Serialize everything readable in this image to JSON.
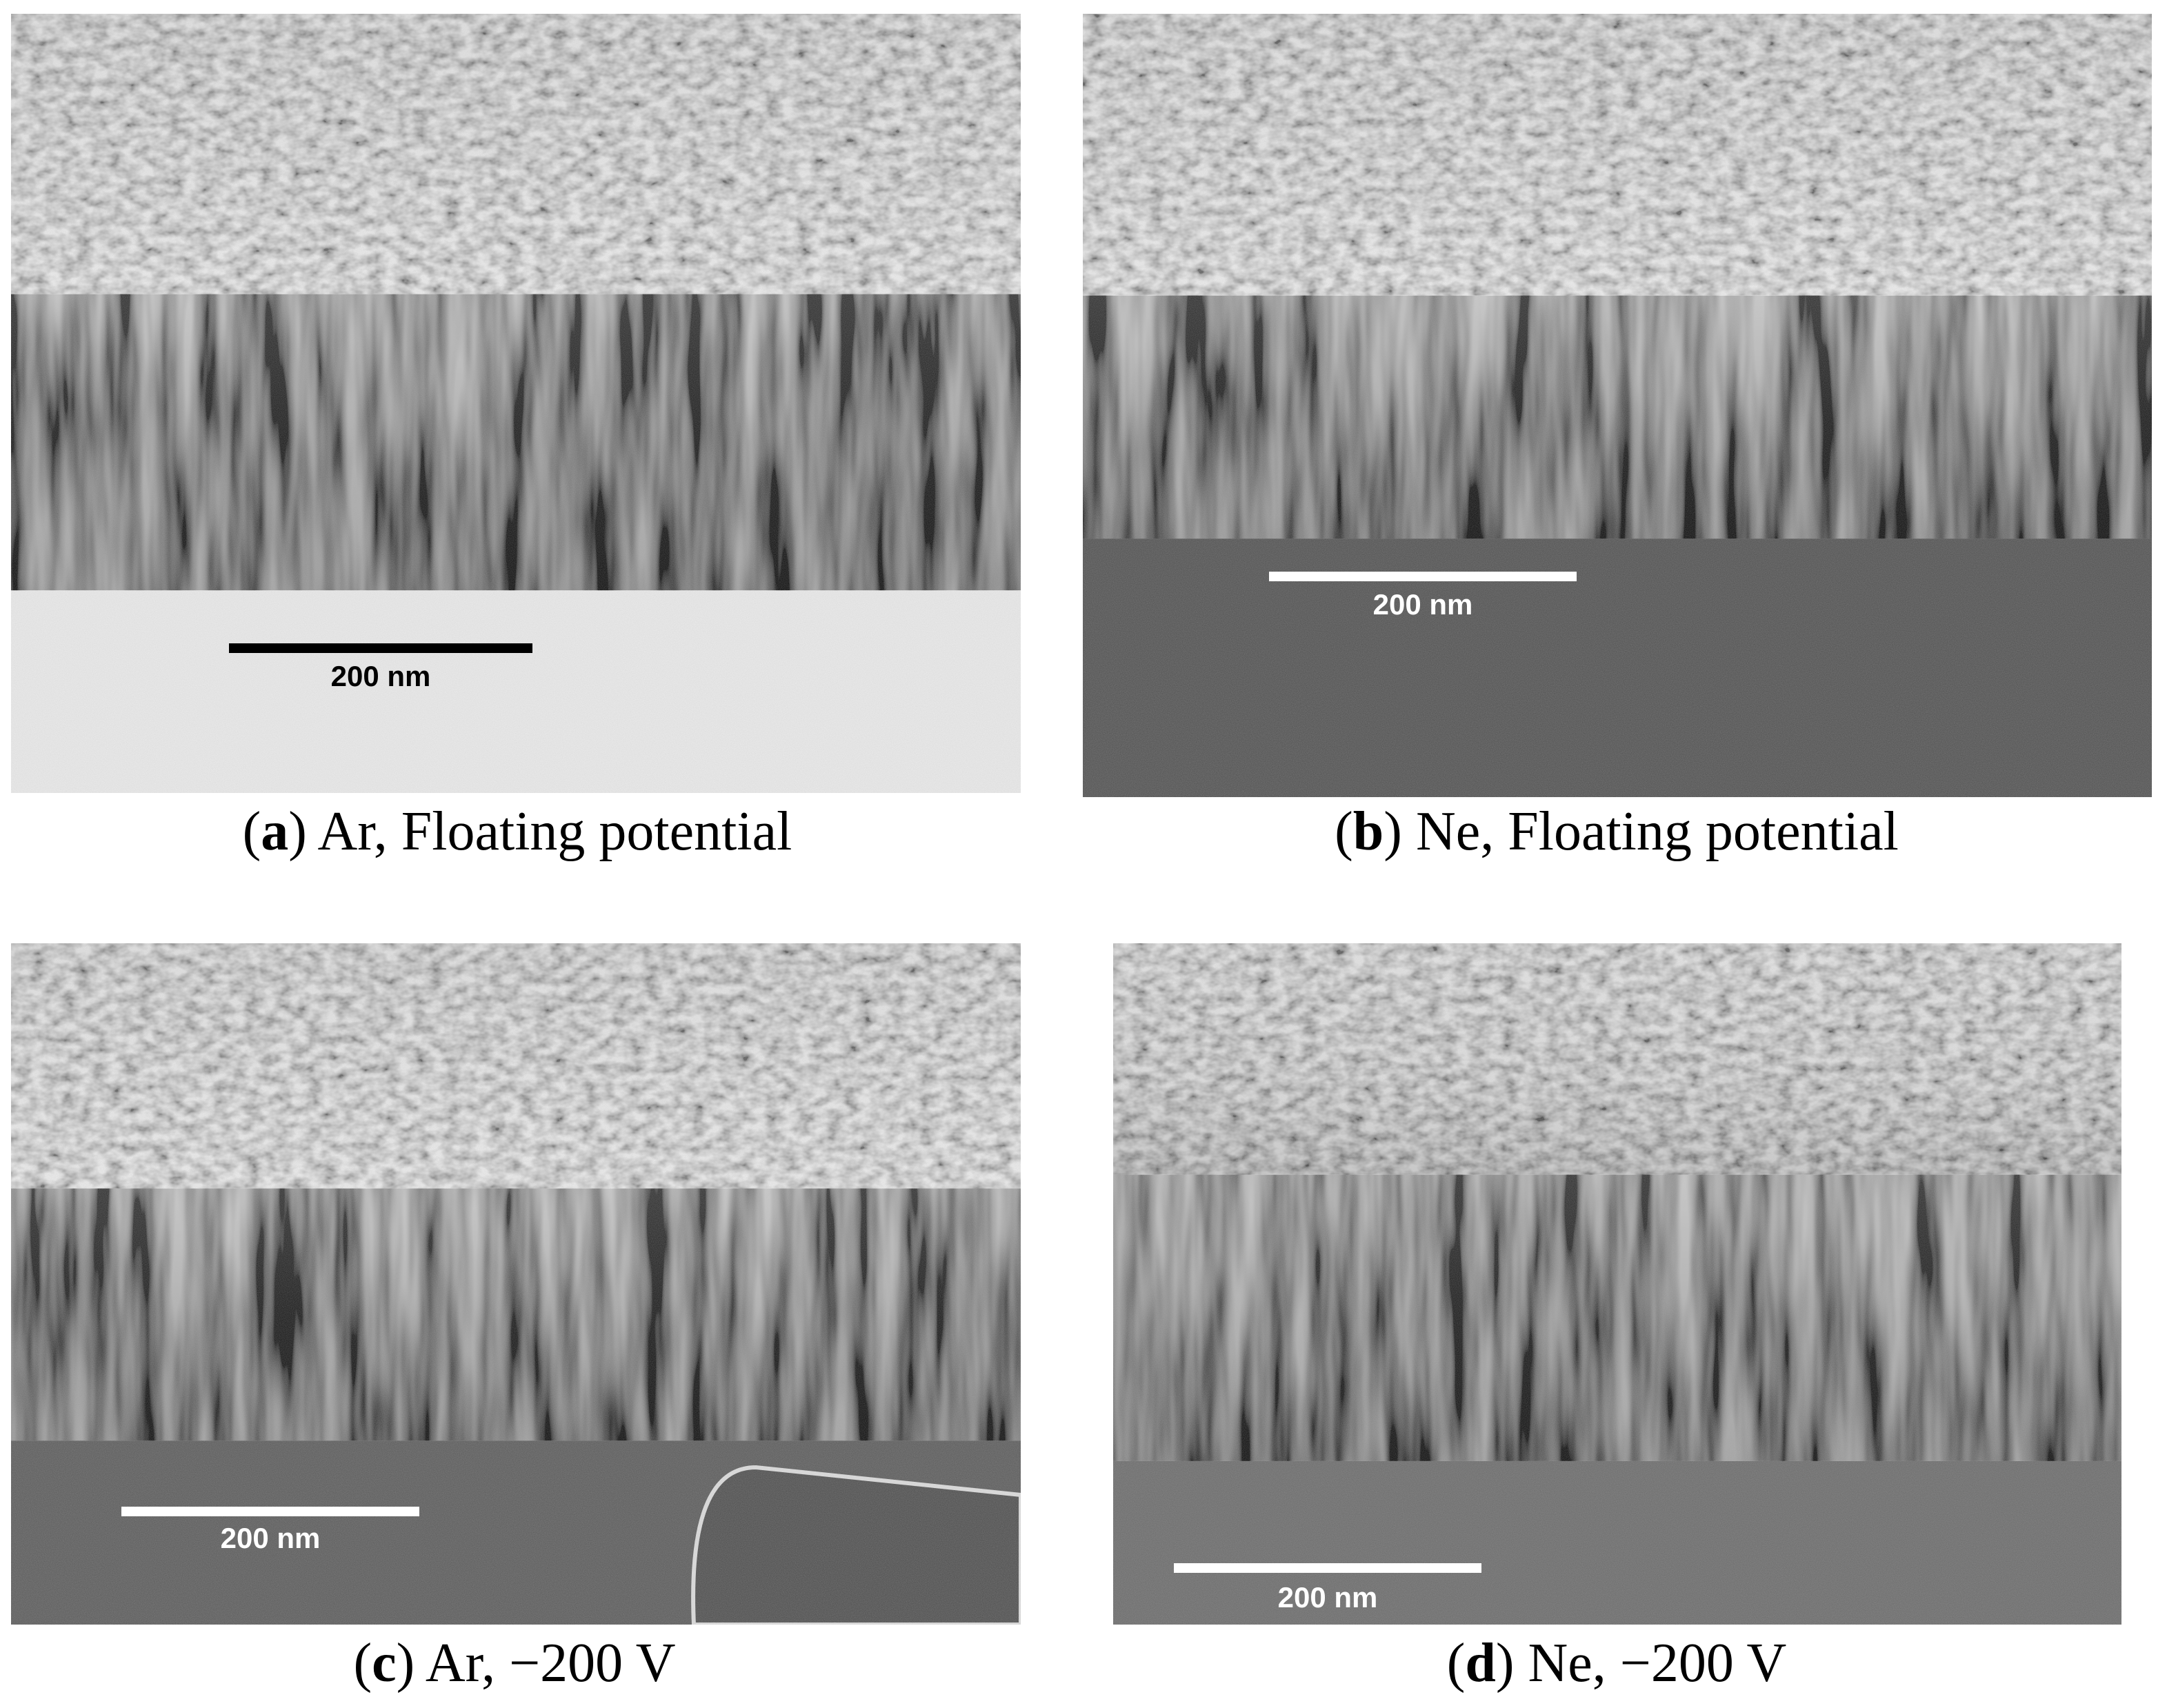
{
  "panels": [
    {
      "open": "(",
      "letter": "a",
      "caption": ") Ar, Floating potential",
      "scale_bar": "200 nm"
    },
    {
      "open": "(",
      "letter": "b",
      "caption": ") Ne, Floating potential",
      "scale_bar": "200 nm"
    },
    {
      "open": "(",
      "letter": "c",
      "caption": ") Ar, −200 V",
      "scale_bar": "200 nm"
    },
    {
      "open": "(",
      "letter": "d",
      "caption": ") Ne, −200 V",
      "scale_bar": "200 nm"
    }
  ]
}
